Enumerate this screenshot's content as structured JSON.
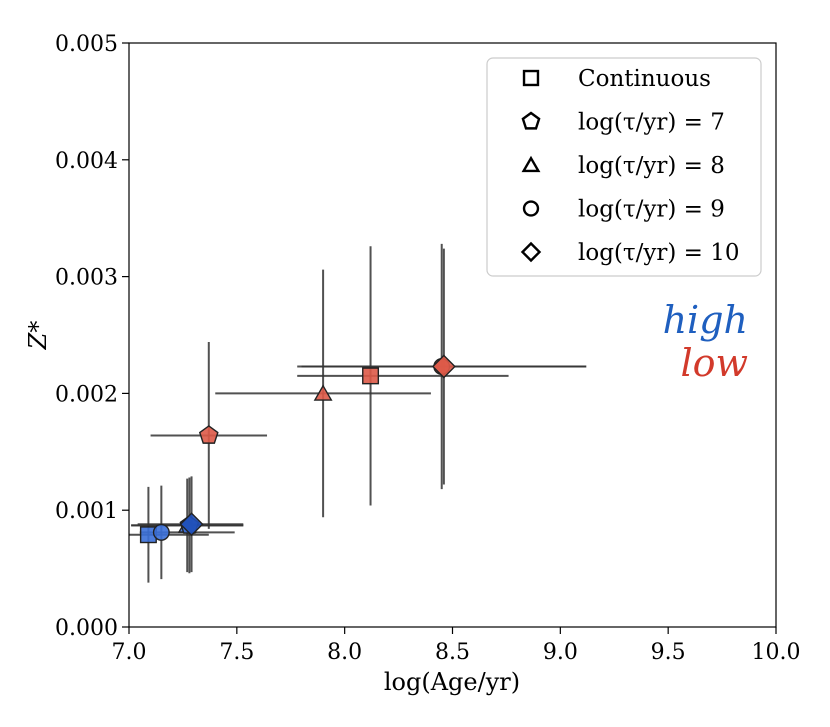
{
  "chart_data": {
    "type": "scatter",
    "xlabel": "log(Age/yr)",
    "ylabel": "Z*",
    "xlim": [
      7.0,
      10.0
    ],
    "ylim": [
      0.0,
      0.005
    ],
    "xticks": [
      "7.0",
      "7.5",
      "8.0",
      "8.5",
      "9.0",
      "9.5",
      "10.0"
    ],
    "yticks": [
      "0.000",
      "0.001",
      "0.002",
      "0.003",
      "0.004",
      "0.005"
    ],
    "grid": false,
    "legend_position": "top-right",
    "legend": [
      {
        "marker": "square",
        "label": "Continuous"
      },
      {
        "marker": "pentagon",
        "label": "log(τ/yr) = 7"
      },
      {
        "marker": "triangle",
        "label": "log(τ/yr) = 8"
      },
      {
        "marker": "circle",
        "label": "log(τ/yr) = 9"
      },
      {
        "marker": "diamond",
        "label": "log(τ/yr) = 10"
      }
    ],
    "annotations": [
      {
        "text": "high",
        "color": "#1f5fbf"
      },
      {
        "text": "low",
        "color": "#d23a2b"
      }
    ],
    "series": [
      {
        "name": "high",
        "color": "#3a6fd8",
        "points": [
          {
            "marker": "square",
            "x": 7.09,
            "y": 0.00079,
            "xerr": [
              0.09,
              0.28
            ],
            "yerr": [
              0.00041,
              0.00041
            ]
          },
          {
            "marker": "circle",
            "x": 7.15,
            "y": 0.00081,
            "xerr": [
              0.1,
              0.34
            ],
            "yerr": [
              0.0004,
              0.0004
            ]
          },
          {
            "marker": "triangle",
            "x": 7.27,
            "y": 0.00087,
            "xerr": [
              0.26,
              0.26
            ],
            "yerr": [
              0.0004,
              0.0004
            ]
          },
          {
            "marker": "pentagon",
            "x": 7.28,
            "y": 0.00087,
            "xerr": [
              0.27,
              0.25
            ],
            "yerr": [
              0.00041,
              0.00041
            ]
          },
          {
            "marker": "diamond",
            "x": 7.29,
            "y": 0.00088,
            "xerr": [
              0.25,
              0.24
            ],
            "yerr": [
              0.00041,
              0.00041
            ],
            "color": "#1f4fb8"
          }
        ]
      },
      {
        "name": "low",
        "color": "#de5a48",
        "points": [
          {
            "marker": "pentagon",
            "x": 7.37,
            "y": 0.00164,
            "xerr": [
              0.27,
              0.27
            ],
            "yerr": [
              0.0008,
              0.0008
            ]
          },
          {
            "marker": "triangle",
            "x": 7.9,
            "y": 0.002,
            "xerr": [
              0.5,
              0.5
            ],
            "yerr": [
              0.00106,
              0.00106
            ]
          },
          {
            "marker": "square",
            "x": 8.12,
            "y": 0.00215,
            "xerr": [
              0.34,
              0.64
            ],
            "yerr": [
              0.00111,
              0.00111
            ]
          },
          {
            "marker": "circle",
            "x": 8.45,
            "y": 0.00223,
            "xerr": [
              0.67,
              0.67
            ],
            "yerr": [
              0.00105,
              0.00105
            ]
          },
          {
            "marker": "diamond",
            "x": 8.46,
            "y": 0.00223,
            "xerr": [
              0.66,
              0.66
            ],
            "yerr": [
              0.00101,
              0.00101
            ]
          }
        ]
      }
    ]
  }
}
